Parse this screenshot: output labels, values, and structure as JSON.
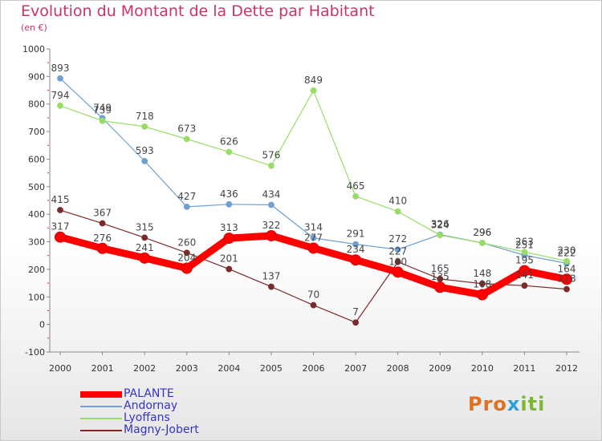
{
  "title": "Evolution du Montant de la Dette par Habitant",
  "unit_label": "(en €)",
  "logo": {
    "part1": "Pro",
    "part2": "x",
    "part3": "iti"
  },
  "chart_data": {
    "type": "line",
    "x": [
      "2000",
      "2001",
      "2002",
      "2003",
      "2004",
      "2005",
      "2006",
      "2007",
      "2008",
      "2009",
      "2010",
      "2011",
      "2012"
    ],
    "ylim": [
      -100,
      1000
    ],
    "yticks": [
      -100,
      0,
      100,
      200,
      300,
      400,
      500,
      600,
      700,
      800,
      900,
      1000
    ],
    "grid": false,
    "legend_position": "bottom-left",
    "series": [
      {
        "name": "PALANTE",
        "color": "#ff0000",
        "width": 9,
        "marker": 6.5,
        "values": [
          317,
          276,
          241,
          204,
          313,
          322,
          277,
          234,
          190,
          135,
          108,
          195,
          164
        ],
        "labels": [
          "317",
          "276",
          "241",
          "204",
          "313",
          "322",
          "277",
          "234",
          "190",
          "135",
          "108",
          "195",
          "164"
        ]
      },
      {
        "name": "Andornay",
        "color": "#6fa0d0",
        "width": 1.2,
        "marker": 3.5,
        "values": [
          893,
          749,
          593,
          427,
          436,
          434,
          314,
          291,
          272,
          326,
          296,
          251,
          222
        ],
        "labels": [
          "893",
          "749",
          "593",
          "427",
          "436",
          "434",
          "314",
          "291",
          "272",
          "326",
          "296",
          "251",
          "222"
        ]
      },
      {
        "name": "Lyoffans",
        "color": "#99dd66",
        "width": 1.2,
        "marker": 3.5,
        "values": [
          794,
          739,
          718,
          673,
          626,
          576,
          849,
          465,
          410,
          324,
          296,
          263,
          230
        ],
        "labels": [
          "794",
          "739",
          "718",
          "673",
          "626",
          "576",
          "849",
          "465",
          "410",
          "324",
          "296",
          "263",
          "230"
        ]
      },
      {
        "name": "Magny-Jobert",
        "color": "#7b2a2a",
        "width": 1.2,
        "marker": 3.5,
        "values": [
          415,
          367,
          315,
          260,
          201,
          137,
          70,
          7,
          227,
          165,
          148,
          141,
          128
        ],
        "labels": [
          "415",
          "367",
          "315",
          "260",
          "201",
          "137",
          "70",
          "7",
          "227",
          "165",
          "148",
          "141",
          "128"
        ]
      }
    ]
  }
}
